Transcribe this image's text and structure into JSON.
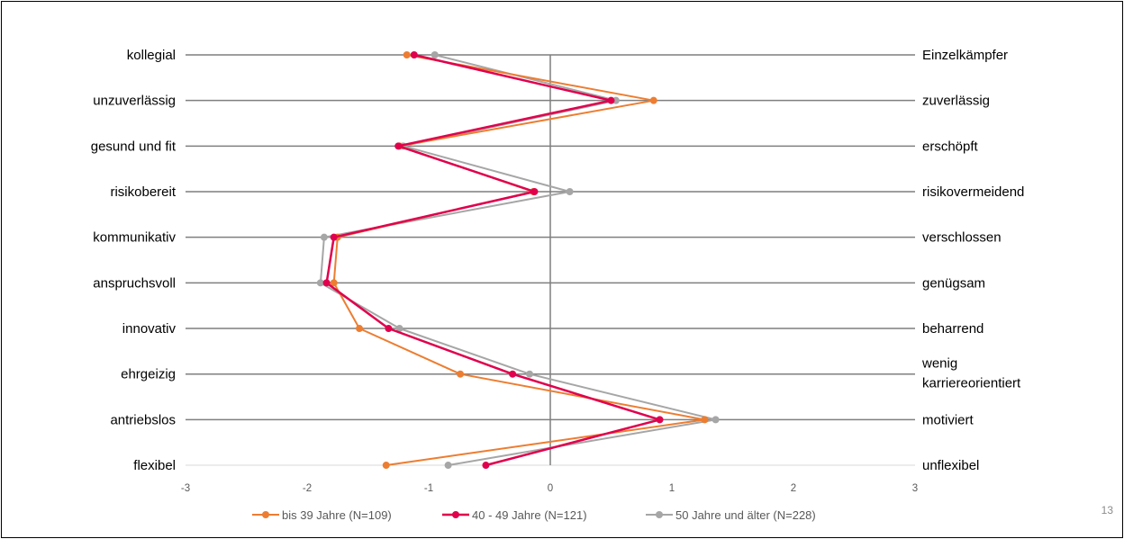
{
  "page_number": "13",
  "chart_data": {
    "type": "line",
    "orientation": "horizontal-profile",
    "title": "",
    "xlim": [
      -3,
      3
    ],
    "x_ticks": [
      -3,
      -2,
      -1,
      0,
      1,
      2,
      3
    ],
    "grid": "horizontal lines at each item, vertical axis line at 0",
    "legend_position": "bottom",
    "left_labels": [
      "kollegial",
      "unzuverlässig",
      "gesund und fit",
      "risikobereit",
      "kommunikativ",
      "anspruchsvoll",
      "innovativ",
      "ehrgeizig",
      "antriebslos",
      "flexibel"
    ],
    "right_labels": [
      "Einzelkämpfer",
      "zuverlässig",
      "erschöpft",
      "risikovermeidend",
      "verschlossen",
      "genügsam",
      "beharrend",
      "wenig karriereorientiert",
      "motiviert",
      "unflexibel"
    ],
    "series": [
      {
        "name": "bis 39 Jahre (N=109)",
        "color": "#ED7D31",
        "values": [
          -1.18,
          0.85,
          -1.24,
          -0.14,
          -1.75,
          -1.78,
          -1.57,
          -0.74,
          1.27,
          -1.35
        ]
      },
      {
        "name": "40 - 49 Jahre (N=121)",
        "color": "#E0004D",
        "values": [
          -1.12,
          0.5,
          -1.25,
          -0.13,
          -1.78,
          -1.84,
          -1.33,
          -0.31,
          0.9,
          -0.53
        ]
      },
      {
        "name": "50 Jahre und älter (N=228)",
        "color": "#A6A6A6",
        "values": [
          -0.95,
          0.54,
          -1.21,
          0.16,
          -1.86,
          -1.89,
          -1.24,
          -0.17,
          1.36,
          -0.84
        ]
      }
    ]
  }
}
